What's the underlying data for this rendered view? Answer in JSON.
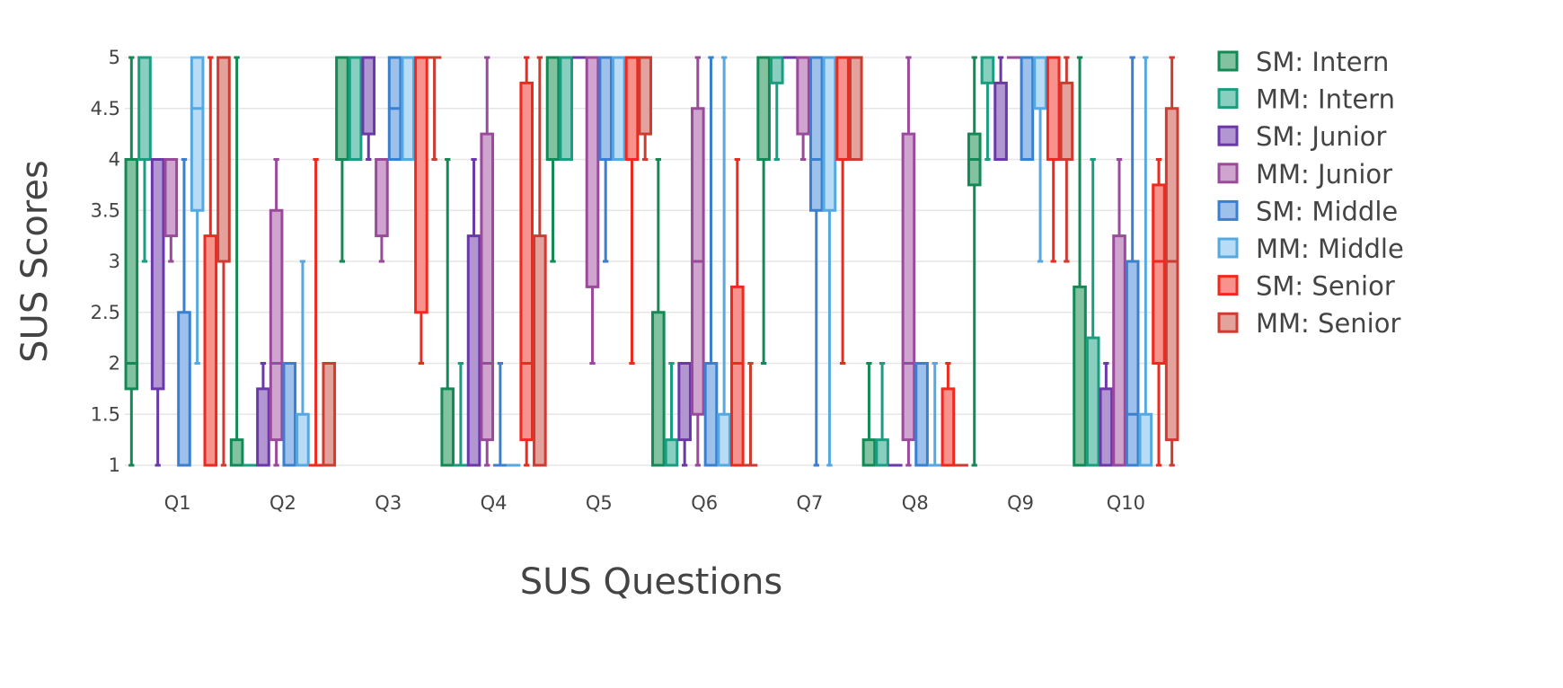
{
  "chart_data": {
    "type": "box",
    "title": "",
    "xlabel": "SUS Questions",
    "ylabel": "SUS Scores",
    "ylim": [
      1,
      5
    ],
    "yticks": [
      1,
      1.5,
      2,
      2.5,
      3,
      3.5,
      4,
      4.5,
      5
    ],
    "ytick_labels": [
      "1",
      "1.5",
      "2",
      "2.5",
      "3",
      "3.5",
      "4",
      "4.5",
      "5"
    ],
    "categories": [
      "Q1",
      "Q2",
      "Q3",
      "Q4",
      "Q5",
      "Q6",
      "Q7",
      "Q8",
      "Q9",
      "Q10"
    ],
    "grid": true,
    "legend_position": "right",
    "series": [
      {
        "name": "SM: Intern",
        "line": "#138a55",
        "fill": "#83c2a0",
        "boxes": [
          {
            "min": 1,
            "q1": 1.75,
            "median": 2,
            "q3": 4,
            "max": 5
          },
          {
            "min": 1,
            "q1": 1,
            "median": 1,
            "q3": 1.25,
            "max": 5
          },
          {
            "min": 3,
            "q1": 4,
            "median": 4,
            "q3": 5,
            "max": 5
          },
          {
            "min": 1,
            "q1": 1,
            "median": 1,
            "q3": 1.75,
            "max": 4
          },
          {
            "min": 3,
            "q1": 4,
            "median": 5,
            "q3": 5,
            "max": 5
          },
          {
            "min": 1,
            "q1": 1,
            "median": 1,
            "q3": 2.5,
            "max": 4
          },
          {
            "min": 2,
            "q1": 4,
            "median": 4,
            "q3": 5,
            "max": 5
          },
          {
            "min": 1,
            "q1": 1,
            "median": 1,
            "q3": 1.25,
            "max": 2
          },
          {
            "min": 1,
            "q1": 3.75,
            "median": 4,
            "q3": 4.25,
            "max": 5
          },
          {
            "min": 1,
            "q1": 1,
            "median": 1,
            "q3": 2.75,
            "max": 5
          }
        ]
      },
      {
        "name": "MM: Intern",
        "line": "#1a9e82",
        "fill": "#88cfbf",
        "boxes": [
          {
            "min": 3,
            "q1": 4,
            "median": 4,
            "q3": 5,
            "max": 5
          },
          {
            "min": 1,
            "q1": 1,
            "median": 1,
            "q3": 1,
            "max": 1
          },
          {
            "min": 4,
            "q1": 4,
            "median": 5,
            "q3": 5,
            "max": 5
          },
          {
            "min": 1,
            "q1": 1,
            "median": 1,
            "q3": 1,
            "max": 2
          },
          {
            "min": 4,
            "q1": 4,
            "median": 5,
            "q3": 5,
            "max": 5
          },
          {
            "min": 1,
            "q1": 1,
            "median": 1,
            "q3": 1.25,
            "max": 2
          },
          {
            "min": 4,
            "q1": 4.75,
            "median": 5,
            "q3": 5,
            "max": 5
          },
          {
            "min": 1,
            "q1": 1,
            "median": 1,
            "q3": 1.25,
            "max": 2
          },
          {
            "min": 4,
            "q1": 4.75,
            "median": 5,
            "q3": 5,
            "max": 5
          },
          {
            "min": 1,
            "q1": 1,
            "median": 1,
            "q3": 2.25,
            "max": 4
          }
        ]
      },
      {
        "name": "SM: Junior",
        "line": "#6a38a8",
        "fill": "#b196d1",
        "boxes": [
          {
            "min": 1,
            "q1": 1.75,
            "median": 4,
            "q3": 4,
            "max": 4
          },
          {
            "min": 1,
            "q1": 1,
            "median": 1,
            "q3": 1.75,
            "max": 2
          },
          {
            "min": 4,
            "q1": 4.25,
            "median": 5,
            "q3": 5,
            "max": 5
          },
          {
            "min": 1,
            "q1": 1,
            "median": 1,
            "q3": 3.25,
            "max": 4
          },
          {
            "min": 5,
            "q1": 5,
            "median": 5,
            "q3": 5,
            "max": 5
          },
          {
            "min": 1,
            "q1": 1.25,
            "median": 2,
            "q3": 2,
            "max": 2
          },
          {
            "min": 5,
            "q1": 5,
            "median": 5,
            "q3": 5,
            "max": 5
          },
          {
            "min": 1,
            "q1": 1,
            "median": 1,
            "q3": 1,
            "max": 1
          },
          {
            "min": 4,
            "q1": 4,
            "median": 4,
            "q3": 4.75,
            "max": 5
          },
          {
            "min": 1,
            "q1": 1,
            "median": 1,
            "q3": 1.75,
            "max": 2
          }
        ]
      },
      {
        "name": "MM: Junior",
        "line": "#9a4a9a",
        "fill": "#cfa4cf",
        "boxes": [
          {
            "min": 3,
            "q1": 3.25,
            "median": 4,
            "q3": 4,
            "max": 4
          },
          {
            "min": 1,
            "q1": 1.25,
            "median": 2,
            "q3": 3.5,
            "max": 4
          },
          {
            "min": 3,
            "q1": 3.25,
            "median": 4,
            "q3": 4,
            "max": 4
          },
          {
            "min": 1,
            "q1": 1.25,
            "median": 2,
            "q3": 4.25,
            "max": 5
          },
          {
            "min": 2,
            "q1": 2.75,
            "median": 5,
            "q3": 5,
            "max": 5
          },
          {
            "min": 1,
            "q1": 1.5,
            "median": 3,
            "q3": 4.5,
            "max": 5
          },
          {
            "min": 4,
            "q1": 4.25,
            "median": 5,
            "q3": 5,
            "max": 5
          },
          {
            "min": 1,
            "q1": 1.25,
            "median": 2,
            "q3": 4.25,
            "max": 5
          },
          {
            "min": 5,
            "q1": 5,
            "median": 5,
            "q3": 5,
            "max": 5
          },
          {
            "min": 1,
            "q1": 1,
            "median": 1,
            "q3": 3.25,
            "max": 4
          }
        ]
      },
      {
        "name": "SM: Middle",
        "line": "#3a7fd0",
        "fill": "#9ec1ec",
        "boxes": [
          {
            "min": 1,
            "q1": 1,
            "median": 1,
            "q3": 2.5,
            "max": 4
          },
          {
            "min": 1,
            "q1": 1,
            "median": 2,
            "q3": 2,
            "max": 2
          },
          {
            "min": 4,
            "q1": 4,
            "median": 4.5,
            "q3": 5,
            "max": 5
          },
          {
            "min": 1,
            "q1": 1,
            "median": 1,
            "q3": 1,
            "max": 2
          },
          {
            "min": 3,
            "q1": 4,
            "median": 5,
            "q3": 5,
            "max": 5
          },
          {
            "min": 1,
            "q1": 1,
            "median": 1,
            "q3": 2,
            "max": 5
          },
          {
            "min": 1,
            "q1": 3.5,
            "median": 4,
            "q3": 5,
            "max": 5
          },
          {
            "min": 1,
            "q1": 1,
            "median": 2,
            "q3": 2,
            "max": 2
          },
          {
            "min": 4,
            "q1": 4,
            "median": 5,
            "q3": 5,
            "max": 5
          },
          {
            "min": 1,
            "q1": 1,
            "median": 1.5,
            "q3": 3,
            "max": 5
          }
        ]
      },
      {
        "name": "MM: Middle",
        "line": "#55a8e0",
        "fill": "#b8dcf5",
        "boxes": [
          {
            "min": 2,
            "q1": 3.5,
            "median": 4.5,
            "q3": 5,
            "max": 5
          },
          {
            "min": 1,
            "q1": 1,
            "median": 1,
            "q3": 1.5,
            "max": 3
          },
          {
            "min": 4,
            "q1": 4,
            "median": 5,
            "q3": 5,
            "max": 5
          },
          {
            "min": 1,
            "q1": 1,
            "median": 1,
            "q3": 1,
            "max": 1
          },
          {
            "min": 4,
            "q1": 4,
            "median": 5,
            "q3": 5,
            "max": 5
          },
          {
            "min": 1,
            "q1": 1,
            "median": 1,
            "q3": 1.5,
            "max": 5
          },
          {
            "min": 1,
            "q1": 3.5,
            "median": 5,
            "q3": 5,
            "max": 5
          },
          {
            "min": 1,
            "q1": 1,
            "median": 1,
            "q3": 1,
            "max": 2
          },
          {
            "min": 3,
            "q1": 4.5,
            "median": 5,
            "q3": 5,
            "max": 5
          },
          {
            "min": 1,
            "q1": 1,
            "median": 1,
            "q3": 1.5,
            "max": 5
          }
        ]
      },
      {
        "name": "SM: Senior",
        "line": "#f0291e",
        "fill": "#f7938c",
        "boxes": [
          {
            "min": 1,
            "q1": 1,
            "median": 1,
            "q3": 3.25,
            "max": 5
          },
          {
            "min": 1,
            "q1": 1,
            "median": 1,
            "q3": 1,
            "max": 4
          },
          {
            "min": 2,
            "q1": 2.5,
            "median": 5,
            "q3": 5,
            "max": 5
          },
          {
            "min": 1,
            "q1": 1.25,
            "median": 2,
            "q3": 4.75,
            "max": 5
          },
          {
            "min": 2,
            "q1": 4,
            "median": 5,
            "q3": 5,
            "max": 5
          },
          {
            "min": 1,
            "q1": 1,
            "median": 2,
            "q3": 2.75,
            "max": 4
          },
          {
            "min": 2,
            "q1": 4,
            "median": 5,
            "q3": 5,
            "max": 5
          },
          {
            "min": 1,
            "q1": 1,
            "median": 1,
            "q3": 1.75,
            "max": 2
          },
          {
            "min": 3,
            "q1": 4,
            "median": 5,
            "q3": 5,
            "max": 5
          },
          {
            "min": 1,
            "q1": 2,
            "median": 3,
            "q3": 3.75,
            "max": 4
          }
        ]
      },
      {
        "name": "MM: Senior",
        "line": "#cc3c30",
        "fill": "#e3a29c",
        "boxes": [
          {
            "min": 1,
            "q1": 3,
            "median": 5,
            "q3": 5,
            "max": 5
          },
          {
            "min": 1,
            "q1": 1,
            "median": 1,
            "q3": 2,
            "max": 2
          },
          {
            "min": 4,
            "q1": 5,
            "median": 5,
            "q3": 5,
            "max": 5
          },
          {
            "min": 1,
            "q1": 1,
            "median": 1,
            "q3": 3.25,
            "max": 5
          },
          {
            "min": 4,
            "q1": 4.25,
            "median": 5,
            "q3": 5,
            "max": 5
          },
          {
            "min": 1,
            "q1": 1,
            "median": 1,
            "q3": 1,
            "max": 2
          },
          {
            "min": 4,
            "q1": 4,
            "median": 5,
            "q3": 5,
            "max": 5
          },
          {
            "min": 1,
            "q1": 1,
            "median": 1,
            "q3": 1,
            "max": 1
          },
          {
            "min": 3,
            "q1": 4,
            "median": 4,
            "q3": 4.75,
            "max": 5
          },
          {
            "min": 1,
            "q1": 1.25,
            "median": 3,
            "q3": 4.5,
            "max": 5
          }
        ]
      }
    ]
  }
}
